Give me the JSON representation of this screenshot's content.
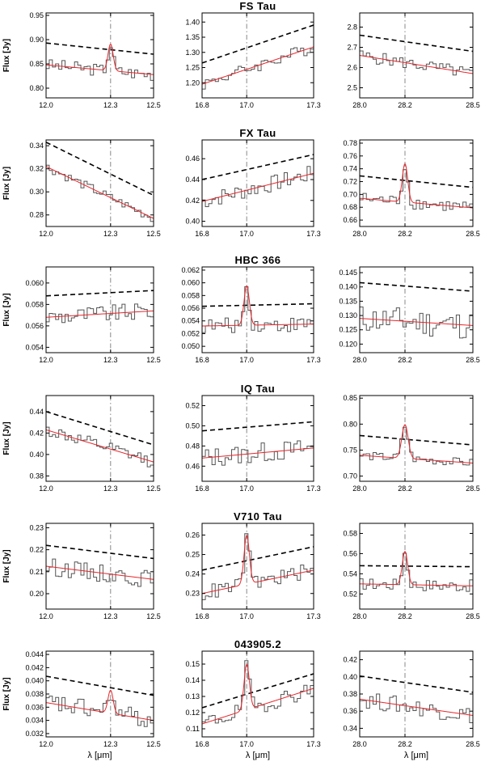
{
  "figure": {
    "xlabel": "λ [μm]",
    "ylabel": "Flux [Jy]",
    "colors": {
      "data": "#555555",
      "model": "#e8262c",
      "continuum": "#000000",
      "marker": "#888888",
      "axis": "#000000"
    }
  },
  "chart_data": [
    {
      "type": "line",
      "star": "FS Tau",
      "col": 0,
      "xlim": [
        12.0,
        12.5
      ],
      "xticks": [
        "12.0",
        "12.3",
        "12.5"
      ],
      "ylim": [
        0.78,
        0.955
      ],
      "yticks": [
        0.8,
        0.85,
        0.9,
        0.95
      ],
      "ytick_labels": [
        "0.80",
        "0.85",
        "0.90",
        "0.95"
      ],
      "line_center": 12.3,
      "continuum": [
        0.893,
        0.87
      ],
      "model_base": [
        0.848,
        0.828
      ],
      "peak_amp": 0.055,
      "peak_width": 0.012,
      "noise": 0.013
    },
    {
      "type": "line",
      "star": "FS Tau",
      "col": 1,
      "xlim": [
        16.8,
        17.3
      ],
      "xticks": [
        "16.8",
        "17.0",
        "17.3"
      ],
      "ylim": [
        1.15,
        1.43
      ],
      "yticks": [
        1.2,
        1.25,
        1.3,
        1.35,
        1.4
      ],
      "ytick_labels": [
        "1.20",
        "1.25",
        "1.30",
        "1.35",
        "1.40"
      ],
      "line_center": 17.0,
      "continuum": [
        1.265,
        1.39
      ],
      "model_base": [
        1.195,
        1.318
      ],
      "peak_amp": 0,
      "peak_width": 0.012,
      "noise": 0.02
    },
    {
      "type": "line",
      "star": "FS Tau",
      "col": 2,
      "xlim": [
        28.0,
        28.5
      ],
      "xticks": [
        "28.0",
        "28.2",
        "28.5"
      ],
      "ylim": [
        2.45,
        2.87
      ],
      "yticks": [
        2.5,
        2.6,
        2.7,
        2.8
      ],
      "ytick_labels": [
        "2.5",
        "2.6",
        "2.7",
        "2.8"
      ],
      "line_center": 28.2,
      "continuum": [
        2.76,
        2.68
      ],
      "model_base": [
        2.66,
        2.57
      ],
      "peak_amp": 0,
      "peak_width": 0.012,
      "noise": 0.03
    },
    {
      "type": "line",
      "star": "FX Tau",
      "col": 0,
      "xlim": [
        12.0,
        12.5
      ],
      "xticks": [
        "12.0",
        "12.3",
        "12.5"
      ],
      "ylim": [
        0.27,
        0.345
      ],
      "yticks": [
        0.28,
        0.3,
        0.32,
        0.34
      ],
      "ytick_labels": [
        "0.28",
        "0.30",
        "0.32",
        "0.34"
      ],
      "line_center": 12.3,
      "continuum": [
        0.343,
        0.297
      ],
      "model_base": [
        0.322,
        0.277
      ],
      "peak_amp": 0,
      "peak_width": 0.012,
      "noise": 0.004
    },
    {
      "type": "line",
      "star": "FX Tau",
      "col": 1,
      "xlim": [
        16.8,
        17.3
      ],
      "xticks": [
        "16.8",
        "17.0",
        "17.3"
      ],
      "ylim": [
        0.395,
        0.478
      ],
      "yticks": [
        0.4,
        0.42,
        0.44,
        0.46
      ],
      "ytick_labels": [
        "0.40",
        "0.42",
        "0.44",
        "0.46"
      ],
      "line_center": 17.0,
      "continuum": [
        0.44,
        0.464
      ],
      "model_base": [
        0.419,
        0.446
      ],
      "peak_amp": 0,
      "peak_width": 0.012,
      "noise": 0.008
    },
    {
      "type": "line",
      "star": "FX Tau",
      "col": 2,
      "xlim": [
        28.0,
        28.5
      ],
      "xticks": [
        "28.0",
        "28.2",
        "28.5"
      ],
      "ylim": [
        0.65,
        0.785
      ],
      "yticks": [
        0.66,
        0.68,
        0.7,
        0.72,
        0.74,
        0.76,
        0.78
      ],
      "ytick_labels": [
        "0.66",
        "0.68",
        "0.70",
        "0.72",
        "0.74",
        "0.76",
        "0.78"
      ],
      "line_center": 28.2,
      "continuum": [
        0.729,
        0.711
      ],
      "model_base": [
        0.694,
        0.679
      ],
      "peak_amp": 0.06,
      "peak_width": 0.012,
      "noise": 0.01
    },
    {
      "type": "line",
      "star": "HBC 366",
      "col": 0,
      "xlim": [
        12.0,
        12.5
      ],
      "xticks": [
        "12.0",
        "12.3",
        "12.5"
      ],
      "ylim": [
        0.0535,
        0.0615
      ],
      "yticks": [
        0.054,
        0.056,
        0.058,
        0.06
      ],
      "ytick_labels": [
        "0.054",
        "0.056",
        "0.058",
        "0.060"
      ],
      "line_center": 12.3,
      "continuum": [
        0.0588,
        0.0593
      ],
      "model_base": [
        0.0568,
        0.0574
      ],
      "peak_amp": 0,
      "peak_width": 0.012,
      "noise": 0.0008
    },
    {
      "type": "line",
      "star": "HBC 366",
      "col": 1,
      "xlim": [
        16.8,
        17.3
      ],
      "xticks": [
        "16.8",
        "17.0",
        "17.3"
      ],
      "ylim": [
        0.049,
        0.0625
      ],
      "yticks": [
        0.05,
        0.052,
        0.054,
        0.056,
        0.058,
        0.06,
        0.062
      ],
      "ytick_labels": [
        "0.050",
        "0.052",
        "0.054",
        "0.056",
        "0.058",
        "0.060",
        "0.062"
      ],
      "line_center": 17.0,
      "continuum": [
        0.0563,
        0.0567
      ],
      "model_base": [
        0.0532,
        0.0535
      ],
      "peak_amp": 0.0062,
      "peak_width": 0.012,
      "noise": 0.0012
    },
    {
      "type": "line",
      "star": "HBC 366",
      "col": 2,
      "xlim": [
        28.0,
        28.5
      ],
      "xticks": [
        "28.0",
        "28.2",
        "28.5"
      ],
      "ylim": [
        0.117,
        0.147
      ],
      "yticks": [
        0.12,
        0.125,
        0.13,
        0.135,
        0.14,
        0.145
      ],
      "ytick_labels": [
        "0.120",
        "0.125",
        "0.130",
        "0.135",
        "0.140",
        "0.145"
      ],
      "line_center": 28.2,
      "continuum": [
        0.1415,
        0.1385
      ],
      "model_base": [
        0.129,
        0.1265
      ],
      "peak_amp": 0,
      "peak_width": 0.012,
      "noise": 0.005
    },
    {
      "type": "line",
      "star": "IQ Tau",
      "col": 0,
      "xlim": [
        12.0,
        12.5
      ],
      "xticks": [
        "12.0",
        "12.3",
        "12.5"
      ],
      "ylim": [
        0.375,
        0.455
      ],
      "yticks": [
        0.38,
        0.4,
        0.42,
        0.44
      ],
      "ytick_labels": [
        "0.38",
        "0.40",
        "0.42",
        "0.44"
      ],
      "line_center": 12.3,
      "continuum": [
        0.44,
        0.409
      ],
      "model_base": [
        0.423,
        0.393
      ],
      "peak_amp": 0,
      "peak_width": 0.012,
      "noise": 0.006
    },
    {
      "type": "line",
      "star": "IQ Tau",
      "col": 1,
      "xlim": [
        16.8,
        17.3
      ],
      "xticks": [
        "16.8",
        "17.0",
        "17.3"
      ],
      "ylim": [
        0.445,
        0.53
      ],
      "yticks": [
        0.46,
        0.48,
        0.5,
        0.52
      ],
      "ytick_labels": [
        "0.46",
        "0.48",
        "0.50",
        "0.52"
      ],
      "line_center": 17.0,
      "continuum": [
        0.495,
        0.504
      ],
      "model_base": [
        0.468,
        0.478
      ],
      "peak_amp": 0,
      "peak_width": 0.012,
      "noise": 0.01
    },
    {
      "type": "line",
      "star": "IQ Tau",
      "col": 2,
      "xlim": [
        28.0,
        28.5
      ],
      "xticks": [
        "28.0",
        "28.2",
        "28.5"
      ],
      "ylim": [
        0.69,
        0.855
      ],
      "yticks": [
        0.7,
        0.75,
        0.8,
        0.85
      ],
      "ytick_labels": [
        "0.70",
        "0.75",
        "0.80",
        "0.85"
      ],
      "line_center": 28.2,
      "continuum": [
        0.778,
        0.76
      ],
      "model_base": [
        0.74,
        0.725
      ],
      "peak_amp": 0.065,
      "peak_width": 0.014,
      "noise": 0.008
    },
    {
      "type": "line",
      "star": "V710 Tau",
      "col": 0,
      "xlim": [
        12.0,
        12.5
      ],
      "xticks": [
        "12.0",
        "12.3",
        "12.5"
      ],
      "ylim": [
        0.193,
        0.232
      ],
      "yticks": [
        0.2,
        0.21,
        0.22,
        0.23
      ],
      "ytick_labels": [
        "0.20",
        "0.21",
        "0.22",
        "0.23"
      ],
      "line_center": 12.3,
      "continuum": [
        0.222,
        0.216
      ],
      "model_base": [
        0.2125,
        0.2065
      ],
      "peak_amp": 0,
      "peak_width": 0.012,
      "noise": 0.004
    },
    {
      "type": "line",
      "star": "V710 Tau",
      "col": 1,
      "xlim": [
        16.8,
        17.3
      ],
      "xticks": [
        "16.8",
        "17.0",
        "17.3"
      ],
      "ylim": [
        0.222,
        0.266
      ],
      "yticks": [
        0.23,
        0.24,
        0.25,
        0.26
      ],
      "ytick_labels": [
        "0.23",
        "0.24",
        "0.25",
        "0.26"
      ],
      "line_center": 17.0,
      "continuum": [
        0.242,
        0.254
      ],
      "model_base": [
        0.23,
        0.242
      ],
      "peak_amp": 0.025,
      "peak_width": 0.012,
      "noise": 0.004
    },
    {
      "type": "line",
      "star": "V710 Tau",
      "col": 2,
      "xlim": [
        28.0,
        28.5
      ],
      "xticks": [
        "28.0",
        "28.2",
        "28.5"
      ],
      "ylim": [
        0.505,
        0.59
      ],
      "yticks": [
        0.52,
        0.54,
        0.56,
        0.58
      ],
      "ytick_labels": [
        "0.52",
        "0.54",
        "0.56",
        "0.58"
      ],
      "line_center": 28.2,
      "continuum": [
        0.548,
        0.547
      ],
      "model_base": [
        0.53,
        0.528
      ],
      "peak_amp": 0.033,
      "peak_width": 0.012,
      "noise": 0.006
    },
    {
      "type": "line",
      "star": "043905.2",
      "col": 0,
      "xlim": [
        12.0,
        12.5
      ],
      "xticks": [
        "12.0",
        "12.3",
        "12.5"
      ],
      "ylim": [
        0.0315,
        0.0445
      ],
      "yticks": [
        0.032,
        0.034,
        0.036,
        0.038,
        0.04,
        0.042,
        0.044
      ],
      "ytick_labels": [
        "0.032",
        "0.034",
        "0.036",
        "0.038",
        "0.040",
        "0.042",
        "0.044"
      ],
      "line_center": 12.3,
      "continuum": [
        0.0407,
        0.0378
      ],
      "model_base": [
        0.0367,
        0.034
      ],
      "peak_amp": 0.0035,
      "peak_width": 0.012,
      "noise": 0.0015
    },
    {
      "type": "line",
      "star": "043905.2",
      "col": 1,
      "xlim": [
        16.8,
        17.3
      ],
      "xticks": [
        "16.8",
        "17.0",
        "17.3"
      ],
      "ylim": [
        0.105,
        0.158
      ],
      "yticks": [
        0.11,
        0.12,
        0.13,
        0.14,
        0.15
      ],
      "ytick_labels": [
        "0.11",
        "0.12",
        "0.13",
        "0.14",
        "0.15"
      ],
      "line_center": 17.0,
      "continuum": [
        0.123,
        0.144
      ],
      "model_base": [
        0.113,
        0.135
      ],
      "peak_amp": 0.028,
      "peak_width": 0.012,
      "noise": 0.005
    },
    {
      "type": "line",
      "star": "043905.2",
      "col": 2,
      "xlim": [
        28.0,
        28.5
      ],
      "xticks": [
        "28.0",
        "28.2",
        "28.5"
      ],
      "ylim": [
        0.33,
        0.43
      ],
      "yticks": [
        0.34,
        0.36,
        0.38,
        0.4,
        0.42
      ],
      "ytick_labels": [
        "0.34",
        "0.36",
        "0.38",
        "0.40",
        "0.42"
      ],
      "line_center": 28.2,
      "continuum": [
        0.401,
        0.382
      ],
      "model_base": [
        0.374,
        0.355
      ],
      "peak_amp": 0,
      "peak_width": 0.012,
      "noise": 0.01
    }
  ]
}
